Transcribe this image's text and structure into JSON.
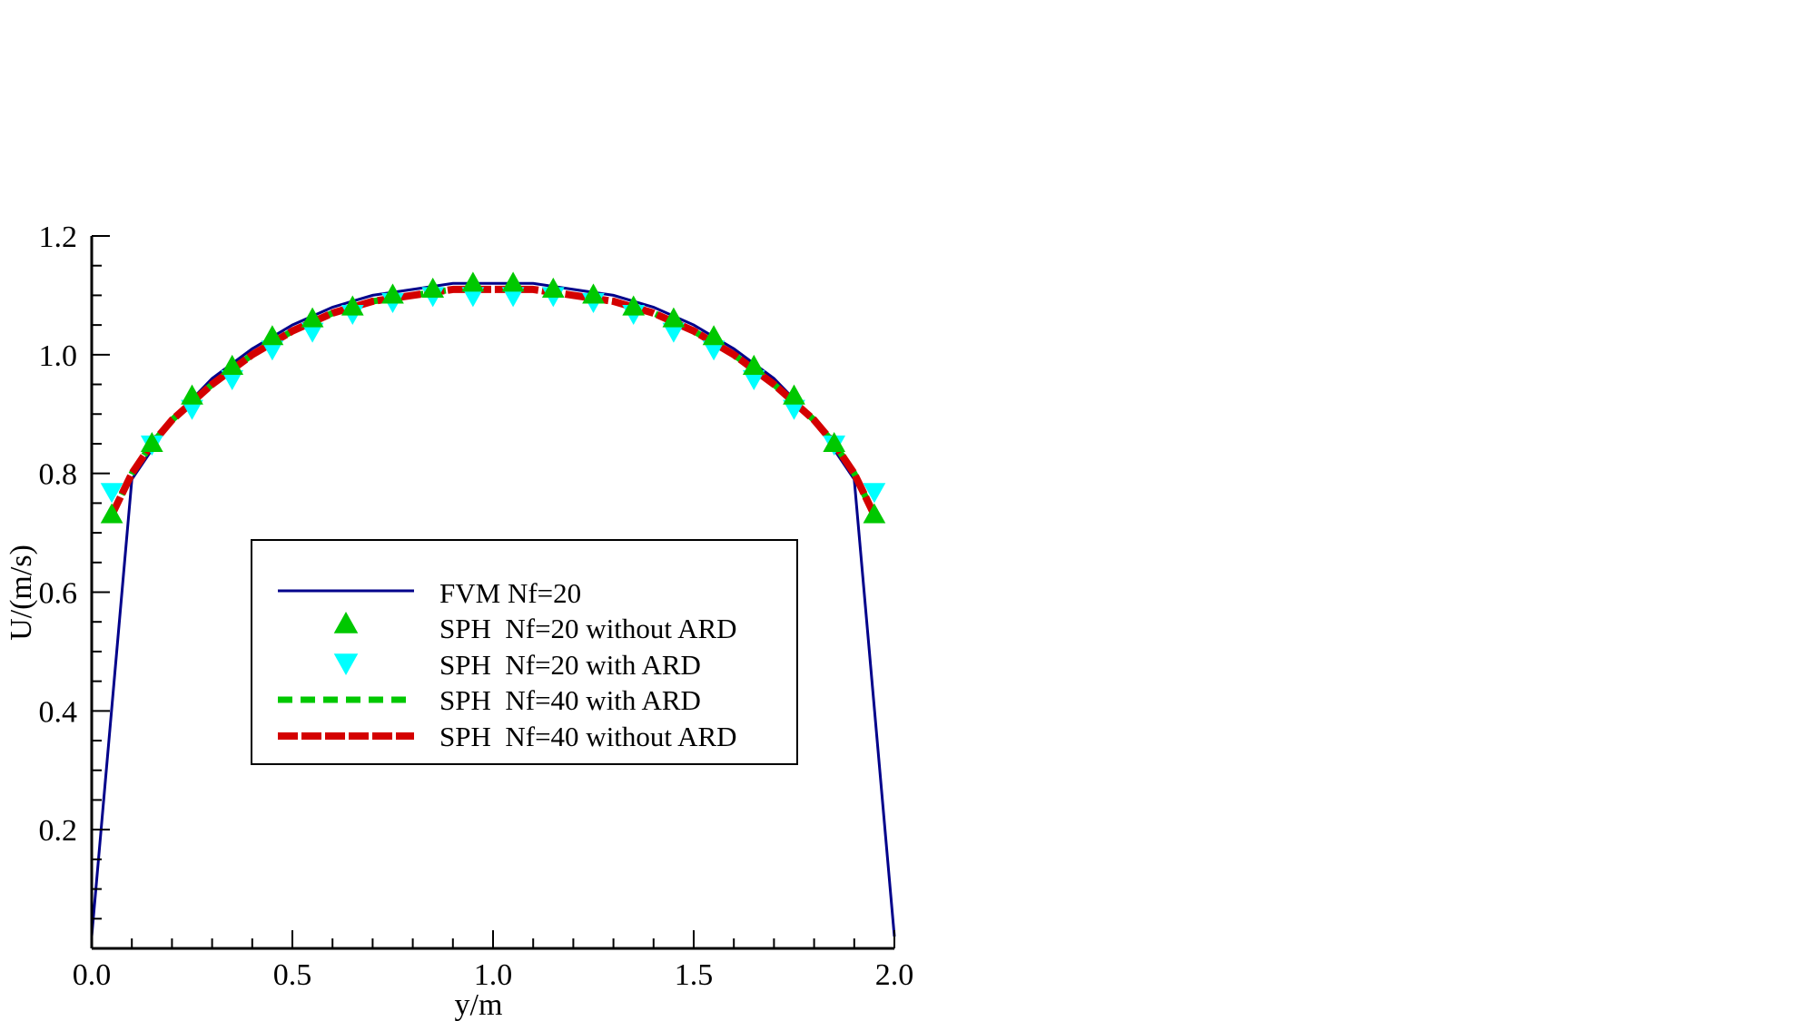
{
  "colors": {
    "fvm": "#00008b",
    "sph20_without": "#00c800",
    "sph20_with": "#00ffff",
    "sph40_with": "#00c800",
    "sph40_without": "#d40000",
    "axis": "#000000"
  },
  "chart_data": {
    "type": "line",
    "xlabel": "y/m",
    "ylabel": "U/(m/s)",
    "xlim": [
      0,
      2.0
    ],
    "ylim": [
      0,
      1.2
    ],
    "xticks": [
      "0.0",
      "0.5",
      "1.0",
      "1.5",
      "2.0"
    ],
    "xtick_values": [
      0,
      0.5,
      1.0,
      1.5,
      2.0
    ],
    "yticks": [
      "0.2",
      "0.4",
      "0.6",
      "0.8",
      "1.0",
      "1.2"
    ],
    "ytick_values": [
      0.2,
      0.4,
      0.6,
      0.8,
      1.0,
      1.2
    ],
    "legend_position": "center",
    "grid": false,
    "series": [
      {
        "name": "FVM Nf=20",
        "style": "solid-line",
        "x": [
          0,
          0.1,
          0.2,
          0.3,
          0.4,
          0.5,
          0.6,
          0.7,
          0.8,
          0.9,
          1.0,
          1.1,
          1.2,
          1.3,
          1.4,
          1.5,
          1.6,
          1.7,
          1.8,
          1.9,
          2.0
        ],
        "y": [
          0.02,
          0.79,
          0.89,
          0.96,
          1.01,
          1.05,
          1.08,
          1.1,
          1.11,
          1.12,
          1.12,
          1.12,
          1.11,
          1.1,
          1.08,
          1.05,
          1.01,
          0.96,
          0.89,
          0.79,
          0.02
        ]
      },
      {
        "name": "SPH  Nf=20 without ARD",
        "style": "marker-triangle-up",
        "x": [
          0.05,
          0.15,
          0.25,
          0.35,
          0.45,
          0.55,
          0.65,
          0.75,
          0.85,
          0.95,
          1.05,
          1.15,
          1.25,
          1.35,
          1.45,
          1.55,
          1.65,
          1.75,
          1.85,
          1.95
        ],
        "y": [
          0.73,
          0.85,
          0.93,
          0.98,
          1.03,
          1.06,
          1.08,
          1.1,
          1.11,
          1.12,
          1.12,
          1.11,
          1.1,
          1.08,
          1.06,
          1.03,
          0.98,
          0.93,
          0.85,
          0.73
        ]
      },
      {
        "name": "SPH  Nf=20 with ARD",
        "style": "marker-triangle-down",
        "x": [
          0.05,
          0.15,
          0.25,
          0.35,
          0.45,
          0.55,
          0.65,
          0.75,
          0.85,
          0.95,
          1.05,
          1.15,
          1.25,
          1.35,
          1.45,
          1.55,
          1.65,
          1.75,
          1.85,
          1.95
        ],
        "y": [
          0.77,
          0.85,
          0.91,
          0.96,
          1.01,
          1.04,
          1.07,
          1.09,
          1.1,
          1.1,
          1.1,
          1.1,
          1.09,
          1.07,
          1.04,
          1.01,
          0.96,
          0.91,
          0.85,
          0.77
        ]
      },
      {
        "name": "SPH  Nf=40 with ARD",
        "style": "dashed-line",
        "x": [
          0.05,
          0.1,
          0.15,
          0.2,
          0.3,
          0.4,
          0.5,
          0.6,
          0.7,
          0.8,
          0.9,
          1.0,
          1.1,
          1.2,
          1.3,
          1.4,
          1.5,
          1.6,
          1.7,
          1.8,
          1.85,
          1.9,
          1.95
        ],
        "y": [
          0.73,
          0.8,
          0.85,
          0.89,
          0.95,
          1.0,
          1.04,
          1.07,
          1.09,
          1.1,
          1.11,
          1.11,
          1.11,
          1.1,
          1.09,
          1.07,
          1.04,
          1.0,
          0.95,
          0.89,
          0.85,
          0.8,
          0.73
        ]
      },
      {
        "name": "SPH  Nf=40 without ARD",
        "style": "dashed-line-thick",
        "x": [
          0.05,
          0.1,
          0.15,
          0.2,
          0.3,
          0.4,
          0.5,
          0.6,
          0.7,
          0.8,
          0.9,
          1.0,
          1.1,
          1.2,
          1.3,
          1.4,
          1.5,
          1.6,
          1.7,
          1.8,
          1.85,
          1.9,
          1.95
        ],
        "y": [
          0.73,
          0.8,
          0.85,
          0.89,
          0.95,
          1.0,
          1.04,
          1.07,
          1.09,
          1.1,
          1.11,
          1.11,
          1.11,
          1.1,
          1.09,
          1.07,
          1.04,
          1.0,
          0.95,
          0.89,
          0.85,
          0.8,
          0.73
        ]
      }
    ]
  }
}
